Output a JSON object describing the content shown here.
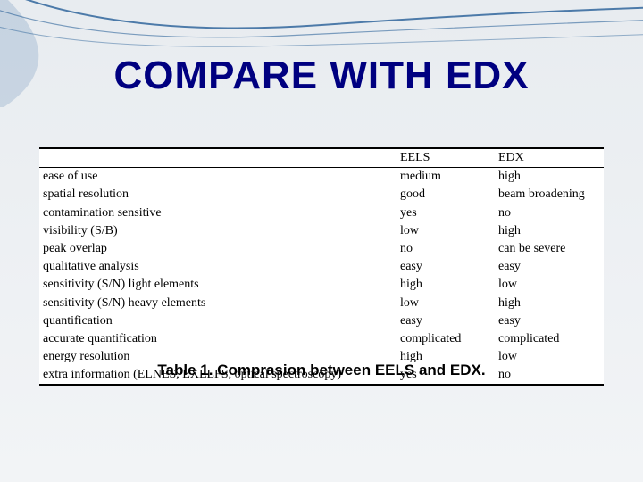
{
  "title": "COMPARE WITH EDX",
  "caption": "Table 1. Comprasion between EELS and EDX.",
  "swoosh_color": "#0a4a8a",
  "table": {
    "columns": [
      "",
      "EELS",
      "EDX"
    ],
    "rows": [
      [
        "ease of use",
        "medium",
        "high"
      ],
      [
        "spatial resolution",
        "good",
        "beam broadening"
      ],
      [
        "contamination sensitive",
        "yes",
        "no"
      ],
      [
        "visibility (S/B)",
        "low",
        "high"
      ],
      [
        "peak overlap",
        "no",
        "can be severe"
      ],
      [
        "qualitative analysis",
        "easy",
        "easy"
      ],
      [
        "sensitivity (S/N) light elements",
        "high",
        "low"
      ],
      [
        "sensitivity (S/N) heavy elements",
        "low",
        "high"
      ],
      [
        "quantification",
        "easy",
        "easy"
      ],
      [
        "accurate quantification",
        "complicated",
        "complicated"
      ],
      [
        "energy resolution",
        "high",
        "low"
      ],
      [
        "extra information (ELNES, EXELFS, optical spectroscopy)",
        "yes",
        "no"
      ]
    ]
  }
}
